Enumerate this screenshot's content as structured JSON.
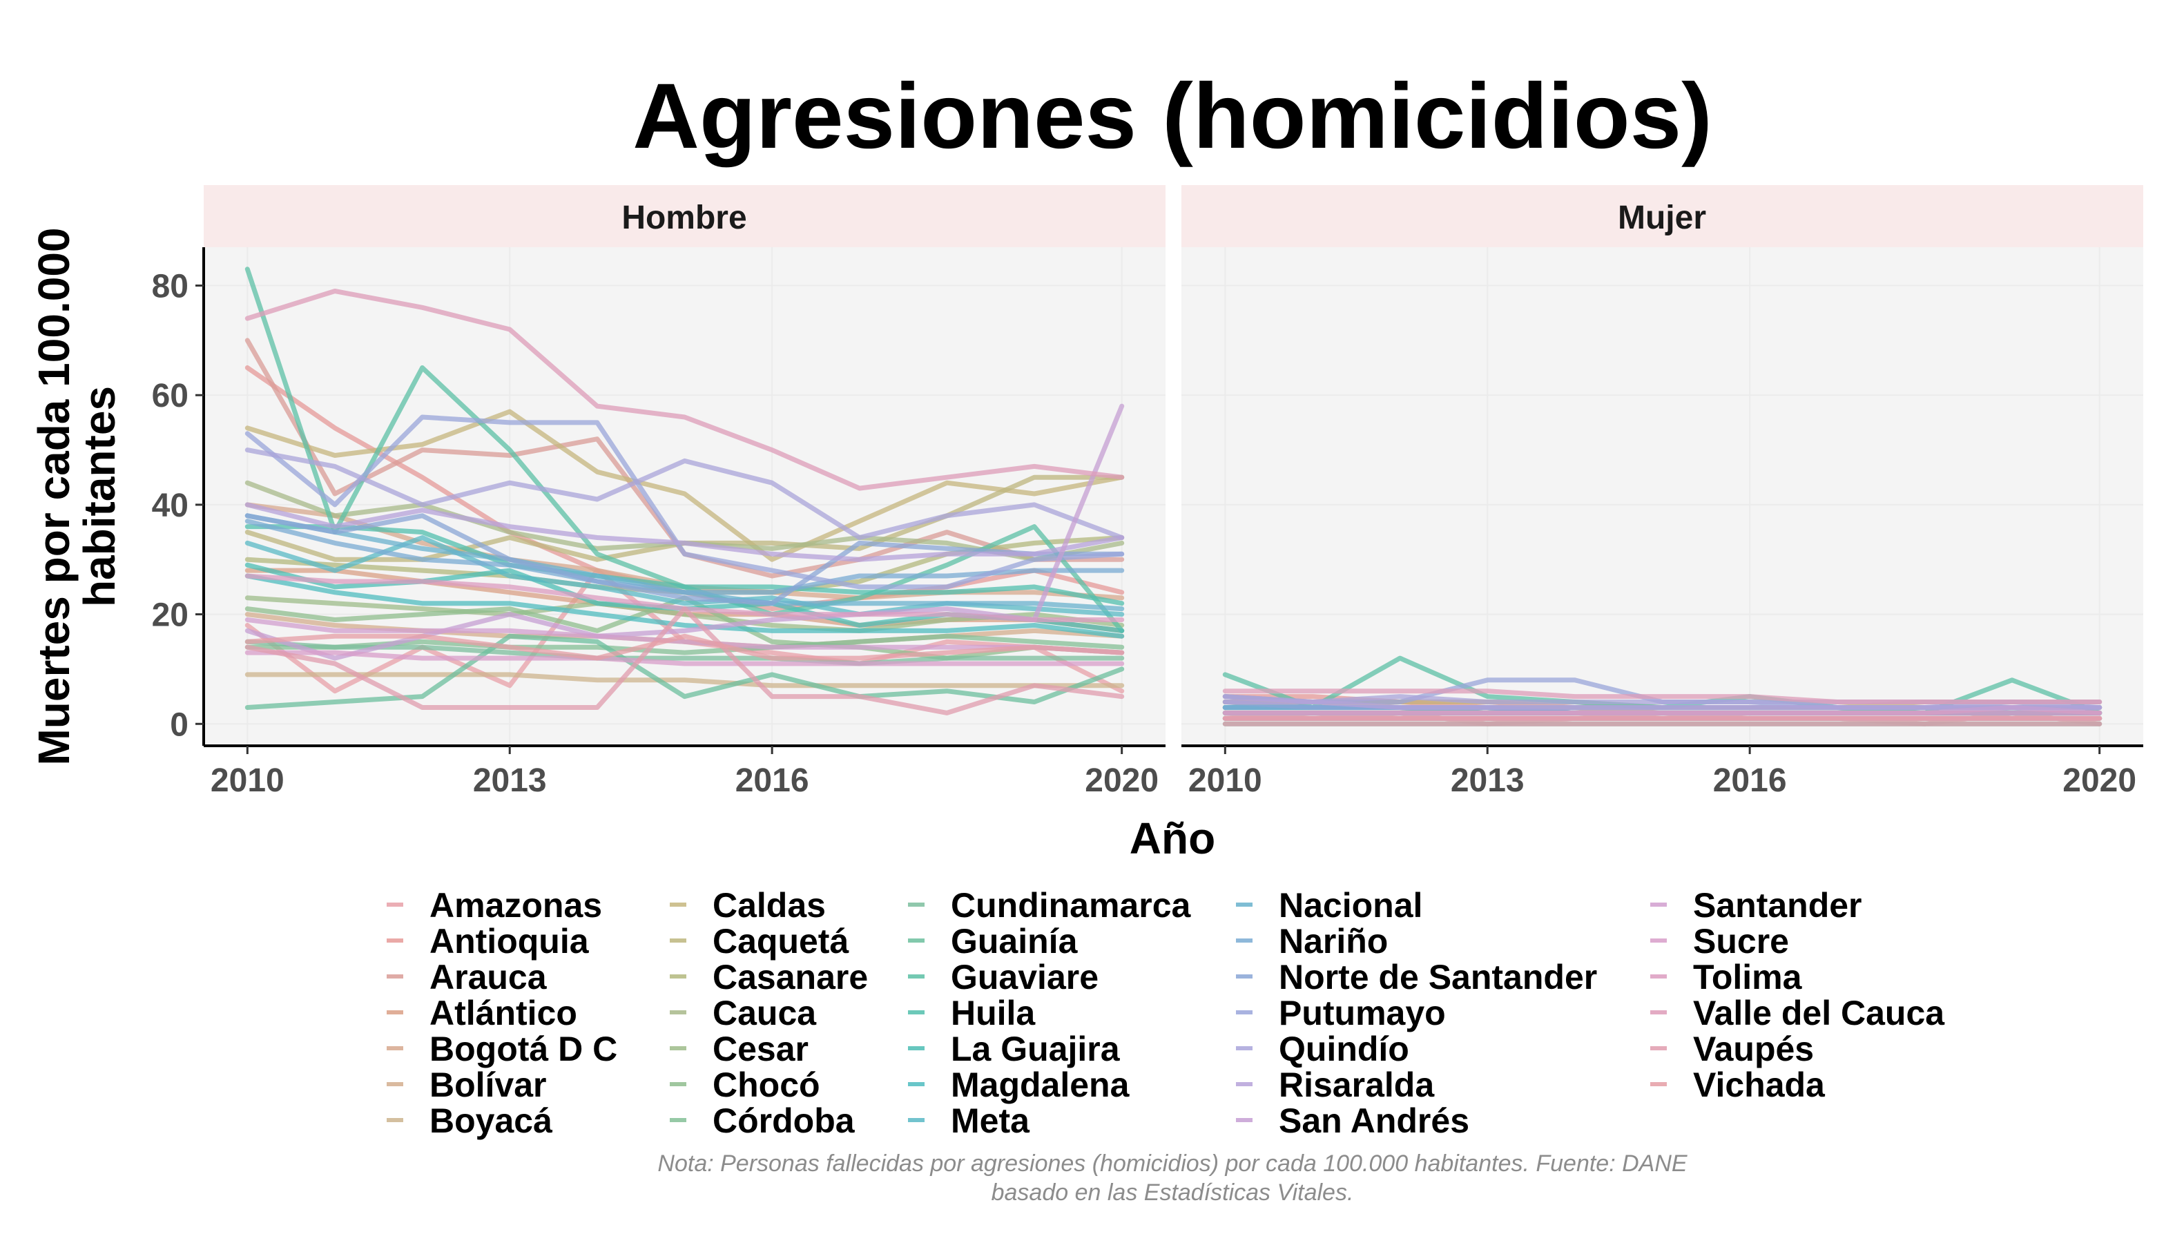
{
  "chart_data": {
    "type": "line",
    "title": "Agresiones (homicidios)",
    "xlabel": "Año",
    "ylabel": "Muertes por cada 100.000 habitantes",
    "facets": [
      "Hombre",
      "Mujer"
    ],
    "x": [
      2010,
      2011,
      2012,
      2013,
      2014,
      2015,
      2016,
      2017,
      2018,
      2019,
      2020
    ],
    "x_ticks": [
      2010,
      2013,
      2016,
      2020
    ],
    "y_ticks": [
      0,
      20,
      40,
      60,
      80
    ],
    "xlim": [
      2009.5,
      2020.5
    ],
    "ylim": [
      -4,
      87
    ],
    "grid": true,
    "legend_position": "bottom",
    "caption": "Nota: Personas fallecidas por agresiones (homicidios) por cada 100.000 habitantes. Fuente: DANE basado en las Estadísticas Vitales.",
    "series": [
      {
        "name": "Amazonas",
        "color": "#e8a0a8",
        "values": {
          "Hombre": [
            18,
            6,
            14,
            7,
            28,
            15,
            13,
            11,
            15,
            14,
            6
          ],
          "Mujer": [
            2,
            1,
            2,
            0,
            1,
            2,
            1,
            1,
            0,
            2,
            0
          ]
        }
      },
      {
        "name": "Antioquia",
        "color": "#e69a98",
        "values": {
          "Hombre": [
            65,
            54,
            45,
            35,
            28,
            24,
            21,
            23,
            25,
            28,
            24
          ],
          "Mujer": [
            5,
            5,
            4,
            3,
            3,
            2,
            2,
            2,
            2,
            2,
            2
          ]
        }
      },
      {
        "name": "Arauca",
        "color": "#d99c97",
        "values": {
          "Hombre": [
            70,
            42,
            50,
            49,
            52,
            31,
            27,
            30,
            35,
            30,
            30
          ],
          "Mujer": [
            5,
            4,
            4,
            4,
            3,
            3,
            3,
            3,
            3,
            3,
            3
          ]
        }
      },
      {
        "name": "Atlántico",
        "color": "#daa086",
        "values": {
          "Hombre": [
            28,
            28,
            26,
            24,
            22,
            20,
            20,
            18,
            19,
            19,
            17
          ],
          "Mujer": [
            2,
            2,
            2,
            2,
            2,
            2,
            2,
            2,
            2,
            2,
            2
          ]
        }
      },
      {
        "name": "Bogotá D C",
        "color": "#d7a88e",
        "values": {
          "Hombre": [
            40,
            38,
            33,
            30,
            28,
            25,
            24,
            23,
            24,
            24,
            23
          ],
          "Mujer": [
            3,
            3,
            3,
            2,
            2,
            2,
            2,
            2,
            2,
            2,
            2
          ]
        }
      },
      {
        "name": "Bolívar",
        "color": "#d4ae8e",
        "values": {
          "Hombre": [
            20,
            18,
            17,
            16,
            16,
            15,
            14,
            15,
            16,
            17,
            16
          ],
          "Mujer": [
            1,
            1,
            1,
            1,
            1,
            1,
            1,
            1,
            1,
            1,
            1
          ]
        }
      },
      {
        "name": "Boyacá",
        "color": "#cdb48e",
        "values": {
          "Hombre": [
            9,
            9,
            9,
            9,
            8,
            8,
            7,
            7,
            7,
            7,
            7
          ],
          "Mujer": [
            1,
            1,
            1,
            1,
            1,
            1,
            1,
            1,
            1,
            1,
            1
          ]
        }
      },
      {
        "name": "Caldas",
        "color": "#c6b67e",
        "values": {
          "Hombre": [
            54,
            49,
            51,
            57,
            46,
            42,
            30,
            37,
            44,
            42,
            45
          ],
          "Mujer": [
            4,
            4,
            4,
            4,
            4,
            3,
            3,
            3,
            3,
            3,
            3
          ]
        }
      },
      {
        "name": "Caquetá",
        "color": "#bdb67e",
        "values": {
          "Hombre": [
            35,
            30,
            30,
            34,
            30,
            33,
            33,
            32,
            38,
            45,
            45
          ],
          "Mujer": [
            3,
            3,
            3,
            3,
            3,
            3,
            3,
            3,
            4,
            4,
            4
          ]
        }
      },
      {
        "name": "Casanare",
        "color": "#b3b87e",
        "values": {
          "Hombre": [
            30,
            29,
            28,
            27,
            25,
            24,
            24,
            26,
            31,
            33,
            34
          ],
          "Mujer": [
            4,
            4,
            3,
            3,
            3,
            3,
            3,
            3,
            3,
            3,
            3
          ]
        }
      },
      {
        "name": "Cauca",
        "color": "#a8b98a",
        "values": {
          "Hombre": [
            44,
            38,
            40,
            35,
            32,
            33,
            32,
            34,
            33,
            30,
            33
          ],
          "Mujer": [
            4,
            3,
            3,
            3,
            3,
            3,
            3,
            3,
            3,
            3,
            3
          ]
        }
      },
      {
        "name": "Cesar",
        "color": "#9dbc8a",
        "values": {
          "Hombre": [
            23,
            22,
            21,
            20,
            22,
            20,
            18,
            17,
            19,
            20,
            18
          ],
          "Mujer": [
            2,
            2,
            2,
            2,
            2,
            2,
            2,
            2,
            2,
            2,
            2
          ]
        }
      },
      {
        "name": "Chocó",
        "color": "#8fbd8e",
        "values": {
          "Hombre": [
            21,
            19,
            20,
            21,
            17,
            23,
            15,
            14,
            12,
            14,
            13
          ],
          "Mujer": [
            2,
            2,
            2,
            2,
            2,
            2,
            2,
            2,
            2,
            2,
            2
          ]
        }
      },
      {
        "name": "Córdoba",
        "color": "#84bf96",
        "values": {
          "Hombre": [
            14,
            14,
            15,
            14,
            14,
            13,
            14,
            15,
            16,
            15,
            14
          ],
          "Mujer": [
            1,
            1,
            1,
            1,
            1,
            1,
            1,
            1,
            1,
            1,
            1
          ]
        }
      },
      {
        "name": "Cundinamarca",
        "color": "#7cbe9d",
        "values": {
          "Hombre": [
            15,
            14,
            14,
            13,
            12,
            12,
            12,
            11,
            12,
            12,
            12
          ],
          "Mujer": [
            1,
            1,
            1,
            1,
            1,
            1,
            1,
            1,
            1,
            1,
            1
          ]
        }
      },
      {
        "name": "Guainía",
        "color": "#6cbf9e",
        "values": {
          "Hombre": [
            3,
            4,
            5,
            16,
            15,
            5,
            9,
            5,
            6,
            4,
            10
          ],
          "Mujer": [
            0,
            0,
            0,
            0,
            0,
            0,
            0,
            0,
            0,
            0,
            0
          ]
        }
      },
      {
        "name": "Guaviare",
        "color": "#5cc0a5",
        "values": {
          "Hombre": [
            83,
            35,
            65,
            50,
            31,
            25,
            20,
            23,
            29,
            36,
            17
          ],
          "Mujer": [
            9,
            3,
            12,
            5,
            4,
            3,
            5,
            3,
            2,
            8,
            2
          ]
        }
      },
      {
        "name": "Huila",
        "color": "#52bfad",
        "values": {
          "Hombre": [
            36,
            36,
            35,
            29,
            27,
            25,
            25,
            24,
            24,
            25,
            22
          ],
          "Mujer": [
            3,
            3,
            3,
            3,
            2,
            2,
            2,
            2,
            2,
            2,
            2
          ]
        }
      },
      {
        "name": "La Guajira",
        "color": "#4cbdb4",
        "values": {
          "Hombre": [
            29,
            25,
            26,
            28,
            22,
            21,
            22,
            18,
            20,
            19,
            17
          ],
          "Mujer": [
            2,
            2,
            2,
            2,
            2,
            2,
            2,
            2,
            2,
            2,
            2
          ]
        }
      },
      {
        "name": "Magdalena",
        "color": "#4fbcbf",
        "values": {
          "Hombre": [
            27,
            24,
            22,
            22,
            20,
            18,
            17,
            17,
            17,
            18,
            16
          ],
          "Mujer": [
            2,
            2,
            2,
            2,
            2,
            2,
            2,
            2,
            2,
            2,
            2
          ]
        }
      },
      {
        "name": "Meta",
        "color": "#59b9c6",
        "values": {
          "Hombre": [
            33,
            28,
            34,
            27,
            25,
            22,
            23,
            20,
            22,
            21,
            20
          ],
          "Mujer": [
            3,
            3,
            3,
            2,
            2,
            2,
            2,
            2,
            2,
            2,
            2
          ]
        }
      },
      {
        "name": "Nacional",
        "color": "#69b2cd",
        "values": {
          "Hombre": [
            38,
            35,
            32,
            30,
            27,
            24,
            22,
            22,
            22,
            22,
            21
          ],
          "Mujer": [
            3,
            3,
            3,
            3,
            2,
            2,
            2,
            2,
            2,
            2,
            2
          ]
        }
      },
      {
        "name": "Nariño",
        "color": "#7aabd3",
        "values": {
          "Hombre": [
            37,
            33,
            30,
            29,
            26,
            24,
            24,
            27,
            27,
            28,
            28
          ],
          "Mujer": [
            3,
            3,
            3,
            3,
            2,
            2,
            2,
            2,
            2,
            2,
            2
          ]
        }
      },
      {
        "name": "Norte de Santander",
        "color": "#8aa6d6",
        "values": {
          "Hombre": [
            38,
            35,
            38,
            30,
            26,
            23,
            22,
            33,
            32,
            31,
            31
          ],
          "Mujer": [
            4,
            3,
            3,
            3,
            3,
            3,
            3,
            3,
            3,
            3,
            3
          ]
        }
      },
      {
        "name": "Putumayo",
        "color": "#9aa6da",
        "values": {
          "Hombre": [
            53,
            40,
            56,
            55,
            55,
            31,
            28,
            25,
            25,
            30,
            31
          ],
          "Mujer": [
            5,
            4,
            4,
            8,
            8,
            4,
            4,
            3,
            3,
            4,
            3
          ]
        }
      },
      {
        "name": "Quindío",
        "color": "#a9a4da",
        "values": {
          "Hombre": [
            50,
            47,
            40,
            44,
            41,
            48,
            44,
            34,
            38,
            40,
            34
          ],
          "Mujer": [
            5,
            4,
            5,
            4,
            4,
            4,
            4,
            4,
            4,
            4,
            4
          ]
        }
      },
      {
        "name": "Risaralda",
        "color": "#b6a2d9",
        "values": {
          "Hombre": [
            40,
            36,
            39,
            36,
            34,
            33,
            31,
            30,
            31,
            31,
            34
          ],
          "Mujer": [
            4,
            4,
            3,
            3,
            3,
            3,
            3,
            3,
            3,
            3,
            3
          ]
        }
      },
      {
        "name": "San Andrés",
        "color": "#c69fd3",
        "values": {
          "Hombre": [
            17,
            12,
            16,
            20,
            16,
            17,
            19,
            20,
            21,
            19,
            58
          ],
          "Mujer": [
            2,
            2,
            2,
            2,
            2,
            2,
            2,
            2,
            2,
            3,
            2
          ]
        }
      },
      {
        "name": "Santander",
        "color": "#d19fcf",
        "values": {
          "Hombre": [
            19,
            17,
            17,
            17,
            16,
            15,
            14,
            14,
            14,
            14,
            13
          ],
          "Mujer": [
            1,
            1,
            1,
            1,
            1,
            1,
            1,
            1,
            1,
            1,
            1
          ]
        }
      },
      {
        "name": "Sucre",
        "color": "#d89dc9",
        "values": {
          "Hombre": [
            13,
            13,
            12,
            12,
            12,
            11,
            11,
            11,
            11,
            11,
            11
          ],
          "Mujer": [
            1,
            1,
            1,
            1,
            1,
            1,
            1,
            1,
            1,
            1,
            1
          ]
        }
      },
      {
        "name": "Tolima",
        "color": "#dc9cc0",
        "values": {
          "Hombre": [
            27,
            26,
            26,
            25,
            23,
            21,
            20,
            20,
            20,
            19,
            19
          ],
          "Mujer": [
            2,
            2,
            2,
            2,
            2,
            2,
            2,
            2,
            2,
            2,
            2
          ]
        }
      },
      {
        "name": "Valle del Cauca",
        "color": "#de9cb8",
        "values": {
          "Hombre": [
            74,
            79,
            76,
            72,
            58,
            56,
            50,
            43,
            45,
            47,
            45
          ],
          "Mujer": [
            6,
            6,
            6,
            6,
            5,
            5,
            5,
            4,
            4,
            4,
            4
          ]
        }
      },
      {
        "name": "Vaupés",
        "color": "#e09cae",
        "values": {
          "Hombre": [
            14,
            11,
            3,
            3,
            3,
            21,
            5,
            5,
            2,
            7,
            5
          ],
          "Mujer": [
            0,
            0,
            0,
            0,
            0,
            0,
            0,
            0,
            0,
            0,
            0
          ]
        }
      },
      {
        "name": "Vichada",
        "color": "#e59ea5",
        "values": {
          "Hombre": [
            15,
            16,
            16,
            14,
            12,
            16,
            12,
            12,
            13,
            14,
            13
          ],
          "Mujer": [
            1,
            1,
            1,
            1,
            1,
            1,
            1,
            1,
            1,
            1,
            1
          ]
        }
      }
    ]
  }
}
